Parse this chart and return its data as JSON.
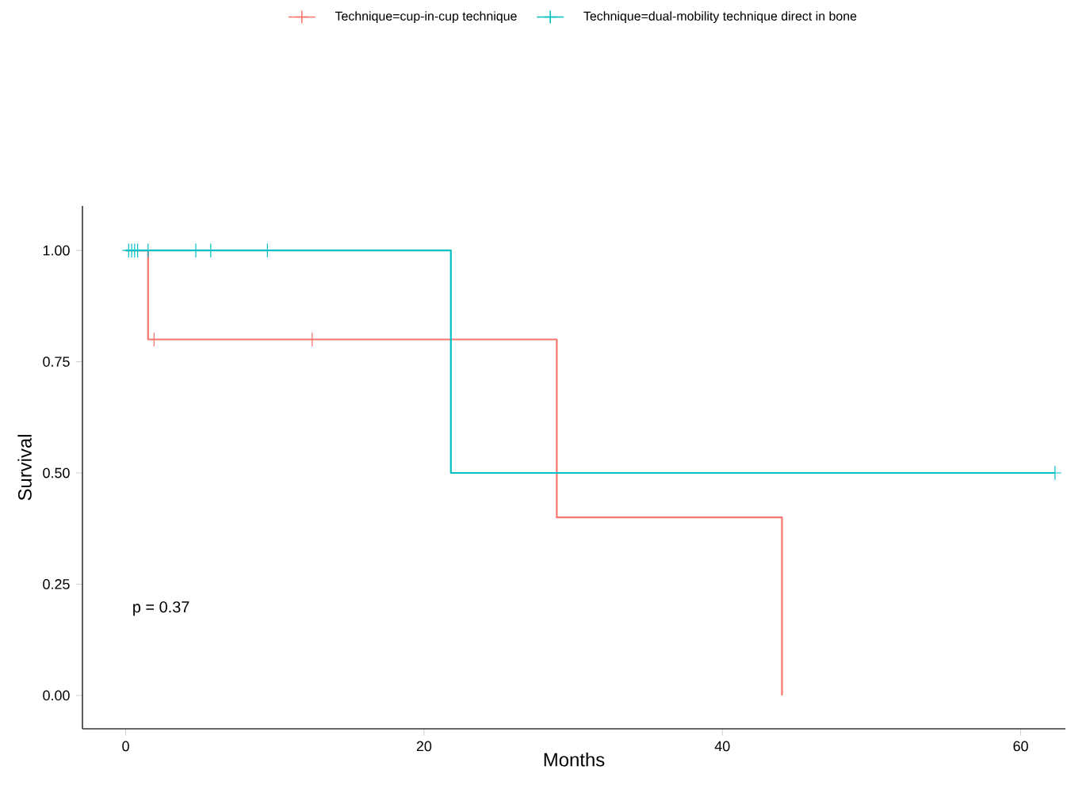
{
  "chart_data": {
    "type": "step",
    "xlabel": "Months",
    "ylabel": "Survival",
    "xlim": [
      -2.9,
      63
    ],
    "ylim": [
      -0.075,
      1.1
    ],
    "xticks": [
      0,
      20,
      40,
      60
    ],
    "yticks": [
      {
        "value": 0,
        "label": "0.00"
      },
      {
        "value": 0.25,
        "label": "0.25"
      },
      {
        "value": 0.5,
        "label": "0.50"
      },
      {
        "value": 0.75,
        "label": "0.75"
      },
      {
        "value": 1,
        "label": "1.00"
      }
    ],
    "legend": "top",
    "grid": false,
    "annotations": [
      "p = 0.37"
    ],
    "series": [
      {
        "name": "Technique=cup-in-cup technique",
        "color": "#f8766d",
        "x": [
          0,
          1.5,
          28.9,
          44.0
        ],
        "values": [
          1,
          0.8,
          0.4,
          0
        ]
      },
      {
        "name": "Technique=dual-mobility technique direct in bone",
        "color": "#00bfc4",
        "x": [
          0,
          21.8,
          62.3
        ],
        "values": [
          1,
          0.5,
          0.5
        ]
      },
      {
        "type": "scatter",
        "marker": "cross",
        "color": "#f8766d",
        "x": [
          1.9,
          12.5
        ],
        "values": [
          0.8,
          0.8
        ]
      },
      {
        "type": "scatter",
        "marker": "cross",
        "color": "#00bfc4",
        "x": [
          0.2,
          0.4,
          0.6,
          0.8,
          1.5,
          4.7,
          5.7,
          9.5,
          62.3
        ],
        "values": [
          1,
          1,
          1,
          1,
          1,
          1,
          1,
          1,
          0.5
        ]
      }
    ]
  }
}
